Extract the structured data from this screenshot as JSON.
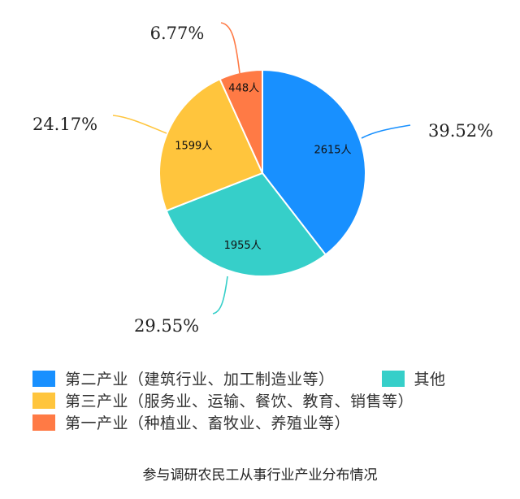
{
  "chart_data": {
    "type": "pie",
    "title": "参与调研农民工从事行业产业分布情况",
    "unit": "人",
    "slices": [
      {
        "name": "第二产业（建筑行业、加工制造业等）",
        "value": 2615,
        "label": "2615人",
        "percent": "39.52%",
        "color": "#1890ff"
      },
      {
        "name": "其他",
        "value": 1955,
        "label": "1955人",
        "percent": "29.55%",
        "color": "#36cfc9"
      },
      {
        "name": "第三产业（服务业、运输、餐饮、教育、销售等）",
        "value": 1599,
        "label": "1599人",
        "percent": "24.17%",
        "color": "#ffc53d"
      },
      {
        "name": "第一产业（种植业、畜牧业、养殖业等）",
        "value": 448,
        "label": "448人",
        "percent": "6.77%",
        "color": "#ff7a45"
      }
    ],
    "legend_position": "bottom"
  },
  "legend": {
    "items": [
      {
        "label": "第二产业（建筑行业、加工制造业等）",
        "color": "#1890ff"
      },
      {
        "label": "其他",
        "color": "#36cfc9"
      },
      {
        "label": "第三产业（服务业、运输、餐饮、教育、销售等）",
        "color": "#ffc53d"
      },
      {
        "label": "第一产业（种植业、畜牧业、养殖业等）",
        "color": "#ff7a45"
      }
    ]
  },
  "title": "参与调研农民工从事行业产业分布情况"
}
